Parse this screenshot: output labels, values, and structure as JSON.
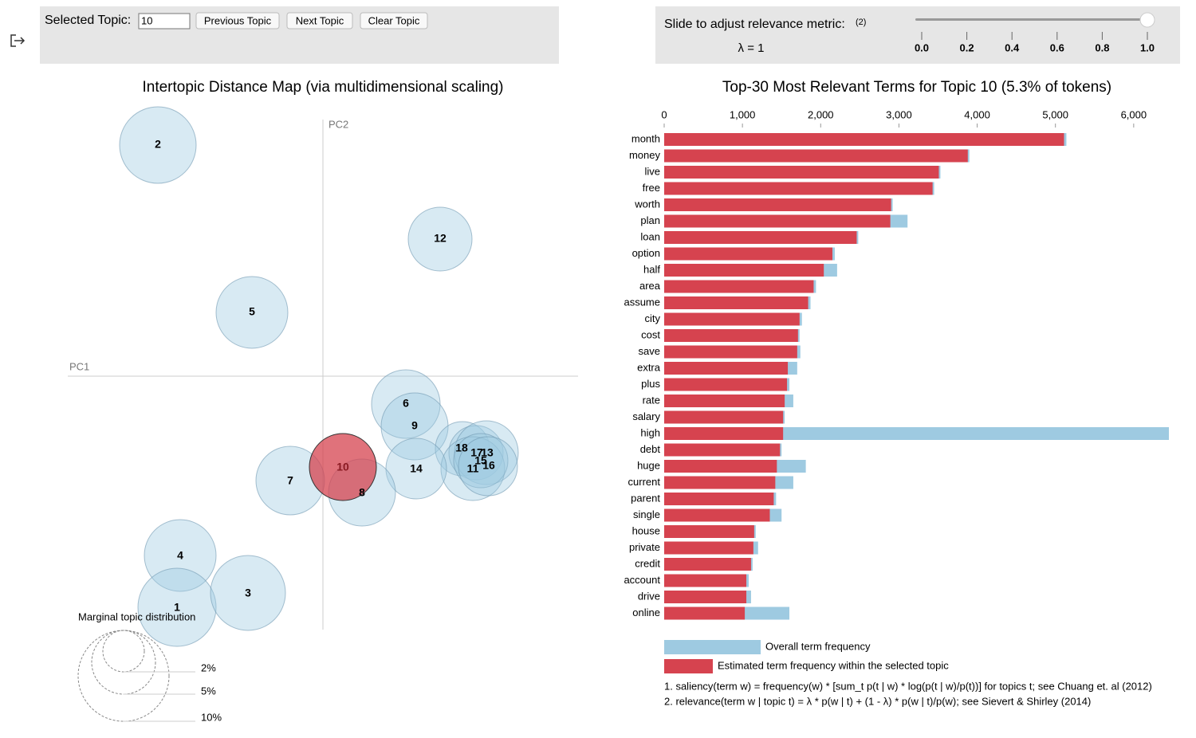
{
  "controls": {
    "selected_topic_label": "Selected Topic:",
    "selected_topic_value": "10",
    "buttons": [
      "Previous Topic",
      "Next Topic",
      "Clear Topic"
    ]
  },
  "slider": {
    "label": "Slide to adjust relevance metric:",
    "note": "(2)",
    "lambda": "λ = 1",
    "ticks": [
      "0.0",
      "0.2",
      "0.4",
      "0.6",
      "0.8",
      "1.0"
    ]
  },
  "map": {
    "title": "Intertopic Distance Map (via multidimensional scaling)",
    "pc1": "PC1",
    "pc2": "PC2",
    "topics": [
      "2",
      "12",
      "5",
      "6",
      "9",
      "18",
      "17",
      "13",
      "11",
      "15",
      "16",
      "14",
      "8",
      "7",
      "4",
      "1",
      "3",
      "10"
    ],
    "legend_title": "Marginal topic distribution",
    "legend_sizes": [
      "2%",
      "5%",
      "10%"
    ]
  },
  "chart_data": {
    "type": "bar",
    "orientation": "horizontal",
    "title": "Top-30 Most Relevant Terms for Topic 10 (5.3% of tokens)",
    "categories": [
      "month",
      "money",
      "live",
      "free",
      "worth",
      "plan",
      "loan",
      "option",
      "half",
      "area",
      "assume",
      "city",
      "cost",
      "save",
      "extra",
      "plus",
      "rate",
      "salary",
      "high",
      "debt",
      "huge",
      "current",
      "parent",
      "single",
      "house",
      "private",
      "credit",
      "account",
      "drive",
      "online"
    ],
    "series": [
      {
        "name": "Overall term frequency",
        "color": "#9ecae1",
        "values": [
          5140,
          3900,
          3530,
          3450,
          2920,
          3110,
          2480,
          2180,
          2210,
          1940,
          1870,
          1760,
          1730,
          1740,
          1700,
          1600,
          1650,
          1540,
          6450,
          1500,
          1810,
          1650,
          1430,
          1500,
          1170,
          1200,
          1130,
          1080,
          1110,
          1600
        ]
      },
      {
        "name": "Estimated term frequency within the selected topic",
        "color": "#d6434f",
        "values": [
          5110,
          3880,
          3510,
          3430,
          2900,
          2890,
          2460,
          2150,
          2040,
          1910,
          1840,
          1730,
          1710,
          1700,
          1580,
          1570,
          1540,
          1520,
          1520,
          1480,
          1440,
          1420,
          1400,
          1350,
          1150,
          1140,
          1110,
          1050,
          1050,
          1030
        ]
      }
    ],
    "xlim": [
      0,
      6450
    ],
    "xticks": [
      0,
      {
        "value": 1000,
        "label": "1,000"
      },
      {
        "value": 2000,
        "label": "2,000"
      },
      {
        "value": 3000,
        "label": "3,000"
      },
      {
        "value": 4000,
        "label": "4,000"
      },
      {
        "value": 5000,
        "label": "5,000"
      },
      {
        "value": 6000,
        "label": "6,000"
      }
    ]
  },
  "notes": [
    "1. saliency(term w) = frequency(w) * [sum_t p(t | w) * log(p(t | w)/p(t))] for topics t; see Chuang et. al (2012)",
    "2. relevance(term w | topic t) = λ * p(w | t) + (1 - λ) * p(w | t)/p(w); see Sievert & Shirley (2014)"
  ]
}
